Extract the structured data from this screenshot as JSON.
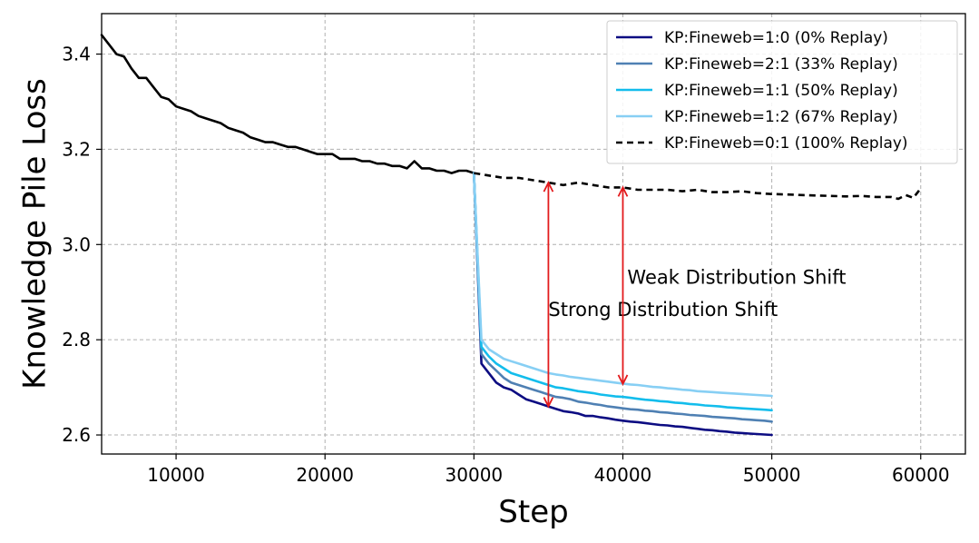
{
  "chart_data": {
    "type": "line",
    "title": "",
    "xlabel": "Step",
    "ylabel": "Knowledge Pile Loss",
    "xlim": [
      5000,
      63000
    ],
    "ylim": [
      2.56,
      3.485
    ],
    "xticks": [
      10000,
      20000,
      30000,
      40000,
      50000,
      60000
    ],
    "xtick_labels": [
      "10000",
      "20000",
      "30000",
      "40000",
      "50000",
      "60000"
    ],
    "yticks": [
      2.6,
      2.8,
      3.0,
      3.2,
      3.4
    ],
    "ytick_labels": [
      "2.6",
      "2.8",
      "3.0",
      "3.2",
      "3.4"
    ],
    "grid": true,
    "legend_position": "top-right",
    "series": [
      {
        "name": "base",
        "label": "",
        "in_legend": false,
        "color": "#000000",
        "dashed": false,
        "x": [
          5000,
          5500,
          6000,
          6500,
          7000,
          7500,
          8000,
          8500,
          9000,
          9500,
          10000,
          10500,
          11000,
          11500,
          12000,
          12500,
          13000,
          13500,
          14000,
          14500,
          15000,
          15500,
          16000,
          16500,
          17000,
          17500,
          18000,
          18500,
          19000,
          19500,
          20000,
          20500,
          21000,
          21500,
          22000,
          22500,
          23000,
          23500,
          24000,
          24500,
          25000,
          25500,
          26000,
          26500,
          27000,
          27500,
          28000,
          28500,
          29000,
          29500,
          30000
        ],
        "y": [
          3.44,
          3.42,
          3.4,
          3.395,
          3.37,
          3.35,
          3.35,
          3.33,
          3.31,
          3.305,
          3.29,
          3.285,
          3.28,
          3.27,
          3.265,
          3.26,
          3.255,
          3.245,
          3.24,
          3.235,
          3.225,
          3.22,
          3.215,
          3.215,
          3.21,
          3.205,
          3.205,
          3.2,
          3.195,
          3.19,
          3.19,
          3.19,
          3.18,
          3.18,
          3.18,
          3.175,
          3.175,
          3.17,
          3.17,
          3.165,
          3.165,
          3.16,
          3.175,
          3.16,
          3.16,
          3.155,
          3.155,
          3.15,
          3.155,
          3.155,
          3.15
        ]
      },
      {
        "name": "KP:Fineweb=1:0 (0% Replay)",
        "label": "KP:Fineweb=1:0 (0% Replay)",
        "in_legend": true,
        "color": "#0c0c82",
        "dashed": false,
        "x": [
          30000,
          30500,
          31000,
          31500,
          32000,
          32500,
          33000,
          33500,
          34000,
          34500,
          35000,
          35500,
          36000,
          36500,
          37000,
          37500,
          38000,
          38500,
          39000,
          39500,
          40000,
          40500,
          41000,
          41500,
          42000,
          42500,
          43000,
          43500,
          44000,
          44500,
          45000,
          45500,
          46000,
          46500,
          47000,
          47500,
          48000,
          48500,
          49000,
          49500,
          50000
        ],
        "y": [
          3.15,
          2.75,
          2.73,
          2.71,
          2.7,
          2.695,
          2.685,
          2.675,
          2.67,
          2.665,
          2.66,
          2.655,
          2.65,
          2.648,
          2.645,
          2.64,
          2.64,
          2.637,
          2.635,
          2.632,
          2.63,
          2.628,
          2.627,
          2.625,
          2.623,
          2.621,
          2.62,
          2.618,
          2.617,
          2.615,
          2.613,
          2.611,
          2.61,
          2.608,
          2.607,
          2.605,
          2.604,
          2.603,
          2.602,
          2.601,
          2.6
        ]
      },
      {
        "name": "KP:Fineweb=2:1 (33% Replay)",
        "label": "KP:Fineweb=2:1 (33% Replay)",
        "in_legend": true,
        "color": "#4f80b3",
        "dashed": false,
        "x": [
          30000,
          30500,
          31000,
          31500,
          32000,
          32500,
          33000,
          33500,
          34000,
          34500,
          35000,
          35500,
          36000,
          36500,
          37000,
          37500,
          38000,
          38500,
          39000,
          39500,
          40000,
          40500,
          41000,
          41500,
          42000,
          42500,
          43000,
          43500,
          44000,
          44500,
          45000,
          45500,
          46000,
          46500,
          47000,
          47500,
          48000,
          48500,
          49000,
          49500,
          50000
        ],
        "y": [
          3.15,
          2.77,
          2.75,
          2.735,
          2.72,
          2.71,
          2.705,
          2.7,
          2.695,
          2.69,
          2.685,
          2.68,
          2.678,
          2.675,
          2.67,
          2.668,
          2.665,
          2.663,
          2.66,
          2.658,
          2.656,
          2.654,
          2.653,
          2.651,
          2.65,
          2.648,
          2.647,
          2.645,
          2.644,
          2.642,
          2.641,
          2.64,
          2.638,
          2.637,
          2.636,
          2.635,
          2.633,
          2.632,
          2.631,
          2.63,
          2.628
        ]
      },
      {
        "name": "KP:Fineweb=1:1 (50% Replay)",
        "label": "KP:Fineweb=1:1 (50% Replay)",
        "in_legend": true,
        "color": "#13bdec",
        "dashed": false,
        "x": [
          30000,
          30500,
          31000,
          31500,
          32000,
          32500,
          33000,
          33500,
          34000,
          34500,
          35000,
          35500,
          36000,
          36500,
          37000,
          37500,
          38000,
          38500,
          39000,
          39500,
          40000,
          40500,
          41000,
          41500,
          42000,
          42500,
          43000,
          43500,
          44000,
          44500,
          45000,
          45500,
          46000,
          46500,
          47000,
          47500,
          48000,
          48500,
          49000,
          49500,
          50000
        ],
        "y": [
          3.15,
          2.785,
          2.765,
          2.75,
          2.74,
          2.73,
          2.725,
          2.72,
          2.715,
          2.71,
          2.705,
          2.7,
          2.698,
          2.695,
          2.692,
          2.69,
          2.688,
          2.685,
          2.683,
          2.681,
          2.68,
          2.678,
          2.676,
          2.674,
          2.673,
          2.671,
          2.67,
          2.668,
          2.667,
          2.665,
          2.664,
          2.662,
          2.661,
          2.66,
          2.658,
          2.657,
          2.656,
          2.655,
          2.654,
          2.653,
          2.652
        ]
      },
      {
        "name": "KP:Fineweb=1:2 (67% Replay)",
        "label": "KP:Fineweb=1:2 (67% Replay)",
        "in_legend": true,
        "color": "#87cff4",
        "dashed": false,
        "x": [
          30000,
          30500,
          31000,
          31500,
          32000,
          32500,
          33000,
          33500,
          34000,
          34500,
          35000,
          35500,
          36000,
          36500,
          37000,
          37500,
          38000,
          38500,
          39000,
          39500,
          40000,
          40500,
          41000,
          41500,
          42000,
          42500,
          43000,
          43500,
          44000,
          44500,
          45000,
          45500,
          46000,
          46500,
          47000,
          47500,
          48000,
          48500,
          49000,
          49500,
          50000
        ],
        "y": [
          3.15,
          2.8,
          2.78,
          2.77,
          2.76,
          2.755,
          2.75,
          2.745,
          2.74,
          2.735,
          2.73,
          2.727,
          2.725,
          2.722,
          2.72,
          2.718,
          2.716,
          2.714,
          2.712,
          2.71,
          2.708,
          2.706,
          2.705,
          2.703,
          2.701,
          2.7,
          2.698,
          2.697,
          2.695,
          2.694,
          2.692,
          2.691,
          2.69,
          2.689,
          2.688,
          2.687,
          2.686,
          2.685,
          2.684,
          2.683,
          2.682
        ]
      },
      {
        "name": "KP:Fineweb=0:1 (100% Replay)",
        "label": "KP:Fineweb=0:1 (100% Replay)",
        "in_legend": true,
        "color": "#000000",
        "dashed": true,
        "x": [
          30000,
          31000,
          32000,
          33000,
          34000,
          35000,
          36000,
          37000,
          38000,
          39000,
          40000,
          41000,
          42000,
          43000,
          44000,
          45000,
          46000,
          47000,
          48000,
          49000,
          50000,
          51000,
          52000,
          53000,
          54000,
          55000,
          56000,
          57000,
          58000,
          58500,
          59000,
          59500,
          60000
        ],
        "y": [
          3.15,
          3.145,
          3.14,
          3.14,
          3.135,
          3.13,
          3.125,
          3.13,
          3.125,
          3.12,
          3.12,
          3.115,
          3.115,
          3.115,
          3.112,
          3.115,
          3.11,
          3.11,
          3.112,
          3.108,
          3.106,
          3.105,
          3.104,
          3.103,
          3.102,
          3.101,
          3.102,
          3.1,
          3.1,
          3.096,
          3.104,
          3.098,
          3.118
        ]
      }
    ],
    "annotations": [
      {
        "text": "Strong Distribution Shift",
        "x": 35000,
        "y": 2.85,
        "arrow": {
          "x": 35000,
          "y_from": 3.13,
          "y_to": 2.66
        },
        "color": "#e31a1c"
      },
      {
        "text": "Weak Distribution Shift",
        "x": 40300,
        "y": 2.918,
        "arrow": {
          "x": 40000,
          "y_from": 3.12,
          "y_to": 2.707
        },
        "color": "#e31a1c"
      }
    ]
  }
}
